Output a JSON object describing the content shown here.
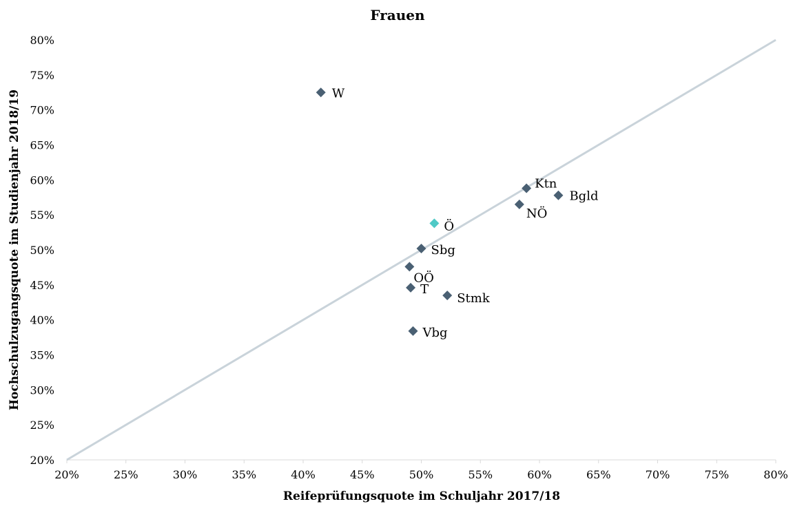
{
  "chart_data": {
    "type": "scatter",
    "title": "Frauen",
    "xlabel": "Reifeprüfungsquote im Schuljahr 2017/18",
    "ylabel": "Hochschulzugangsquote im Studienjahr 2018/19",
    "xlim": [
      0.2,
      0.8
    ],
    "ylim": [
      0.2,
      0.8
    ],
    "x_ticks": [
      "20%",
      "25%",
      "30%",
      "35%",
      "40%",
      "45%",
      "50%",
      "55%",
      "60%",
      "65%",
      "70%",
      "75%",
      "80%"
    ],
    "y_ticks": [
      "20%",
      "25%",
      "30%",
      "35%",
      "40%",
      "45%",
      "50%",
      "55%",
      "60%",
      "65%",
      "70%",
      "75%",
      "80%"
    ],
    "grid": false,
    "reference_line": {
      "from": [
        0.2,
        0.2
      ],
      "to": [
        0.8,
        0.8
      ],
      "color": "#c9d3da"
    },
    "marker": "diamond",
    "colors": {
      "default": "#4a6073",
      "highlight": "#4fc9c6"
    },
    "points": [
      {
        "label": "W",
        "x": 0.415,
        "y": 0.725
      },
      {
        "label": "Ktn",
        "x": 0.589,
        "y": 0.588
      },
      {
        "label": "Bgld",
        "x": 0.616,
        "y": 0.578
      },
      {
        "label": "NÖ",
        "x": 0.583,
        "y": 0.565
      },
      {
        "label": "Ö",
        "x": 0.511,
        "y": 0.538,
        "highlight": true
      },
      {
        "label": "Sbg",
        "x": 0.5,
        "y": 0.502
      },
      {
        "label": "OÖ",
        "x": 0.49,
        "y": 0.476
      },
      {
        "label": "T",
        "x": 0.491,
        "y": 0.446
      },
      {
        "label": "Stmk",
        "x": 0.522,
        "y": 0.435
      },
      {
        "label": "Vbg",
        "x": 0.493,
        "y": 0.384
      }
    ]
  }
}
